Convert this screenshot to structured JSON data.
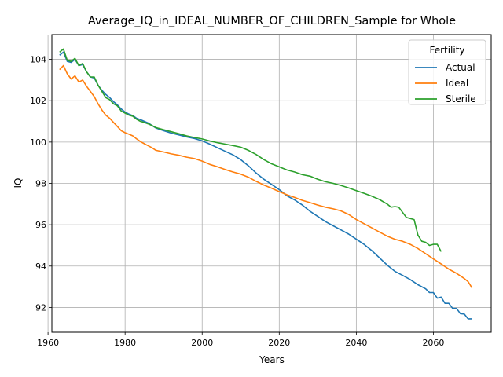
{
  "chart_data": {
    "type": "line",
    "title": "Average_IQ_in_IDEAL_NUMBER_OF_CHILDREN_Sample for Whole",
    "xlabel": "Years",
    "ylabel": "IQ",
    "xlim": [
      1961,
      2075
    ],
    "ylim": [
      90.8,
      105.2
    ],
    "xticks": [
      1960,
      1980,
      2000,
      2020,
      2040,
      2060
    ],
    "yticks": [
      92,
      94,
      96,
      98,
      100,
      102,
      104
    ],
    "xtick_labels": [
      "1960",
      "1980",
      "2000",
      "2020",
      "2040",
      "2060"
    ],
    "ytick_labels": [
      "92",
      "94",
      "96",
      "98",
      "100",
      "102",
      "104"
    ],
    "grid": true,
    "legend": {
      "title": "Fertility",
      "position": "top-right"
    },
    "series": [
      {
        "name": "Actual",
        "color": "#1f77b4",
        "points": [
          [
            1963,
            104.2
          ],
          [
            1964,
            104.35
          ],
          [
            1965,
            103.9
          ],
          [
            1966,
            103.85
          ],
          [
            1967,
            104.0
          ],
          [
            1968,
            103.7
          ],
          [
            1969,
            103.75
          ],
          [
            1970,
            103.4
          ],
          [
            1971,
            103.15
          ],
          [
            1972,
            103.1
          ],
          [
            1973,
            102.75
          ],
          [
            1974,
            102.5
          ],
          [
            1975,
            102.3
          ],
          [
            1976,
            102.15
          ],
          [
            1977,
            101.95
          ],
          [
            1978,
            101.8
          ],
          [
            1979,
            101.6
          ],
          [
            1980,
            101.45
          ],
          [
            1981,
            101.35
          ],
          [
            1982,
            101.28
          ],
          [
            1983,
            101.15
          ],
          [
            1984,
            101.08
          ],
          [
            1985,
            101.0
          ],
          [
            1986,
            100.92
          ],
          [
            1987,
            100.8
          ],
          [
            1988,
            100.68
          ],
          [
            1990,
            100.55
          ],
          [
            1992,
            100.43
          ],
          [
            1994,
            100.34
          ],
          [
            1996,
            100.25
          ],
          [
            1998,
            100.17
          ],
          [
            2000,
            100.06
          ],
          [
            2002,
            99.9
          ],
          [
            2004,
            99.72
          ],
          [
            2006,
            99.55
          ],
          [
            2008,
            99.38
          ],
          [
            2010,
            99.15
          ],
          [
            2012,
            98.85
          ],
          [
            2014,
            98.5
          ],
          [
            2016,
            98.2
          ],
          [
            2018,
            97.95
          ],
          [
            2020,
            97.7
          ],
          [
            2022,
            97.4
          ],
          [
            2024,
            97.2
          ],
          [
            2026,
            96.95
          ],
          [
            2028,
            96.65
          ],
          [
            2030,
            96.4
          ],
          [
            2032,
            96.15
          ],
          [
            2034,
            95.95
          ],
          [
            2036,
            95.75
          ],
          [
            2038,
            95.55
          ],
          [
            2040,
            95.3
          ],
          [
            2042,
            95.05
          ],
          [
            2044,
            94.75
          ],
          [
            2046,
            94.4
          ],
          [
            2048,
            94.05
          ],
          [
            2050,
            93.75
          ],
          [
            2052,
            93.55
          ],
          [
            2054,
            93.35
          ],
          [
            2056,
            93.1
          ],
          [
            2058,
            92.9
          ],
          [
            2059,
            92.72
          ],
          [
            2060,
            92.72
          ],
          [
            2061,
            92.45
          ],
          [
            2062,
            92.5
          ],
          [
            2063,
            92.2
          ],
          [
            2064,
            92.2
          ],
          [
            2065,
            91.95
          ],
          [
            2066,
            91.95
          ],
          [
            2067,
            91.7
          ],
          [
            2068,
            91.68
          ],
          [
            2069,
            91.45
          ],
          [
            2070,
            91.45
          ]
        ]
      },
      {
        "name": "Ideal",
        "color": "#ff7f0e",
        "points": [
          [
            1963,
            103.5
          ],
          [
            1964,
            103.7
          ],
          [
            1965,
            103.3
          ],
          [
            1966,
            103.05
          ],
          [
            1967,
            103.2
          ],
          [
            1968,
            102.9
          ],
          [
            1969,
            103.0
          ],
          [
            1970,
            102.7
          ],
          [
            1971,
            102.45
          ],
          [
            1972,
            102.2
          ],
          [
            1973,
            101.85
          ],
          [
            1974,
            101.55
          ],
          [
            1975,
            101.3
          ],
          [
            1976,
            101.15
          ],
          [
            1977,
            100.95
          ],
          [
            1978,
            100.75
          ],
          [
            1979,
            100.55
          ],
          [
            1980,
            100.45
          ],
          [
            1981,
            100.38
          ],
          [
            1982,
            100.3
          ],
          [
            1983,
            100.15
          ],
          [
            1984,
            100.02
          ],
          [
            1985,
            99.92
          ],
          [
            1986,
            99.82
          ],
          [
            1987,
            99.72
          ],
          [
            1988,
            99.6
          ],
          [
            1990,
            99.52
          ],
          [
            1992,
            99.43
          ],
          [
            1994,
            99.36
          ],
          [
            1996,
            99.27
          ],
          [
            1998,
            99.2
          ],
          [
            2000,
            99.08
          ],
          [
            2002,
            98.92
          ],
          [
            2004,
            98.8
          ],
          [
            2006,
            98.67
          ],
          [
            2008,
            98.55
          ],
          [
            2010,
            98.45
          ],
          [
            2012,
            98.3
          ],
          [
            2014,
            98.1
          ],
          [
            2016,
            97.92
          ],
          [
            2018,
            97.77
          ],
          [
            2020,
            97.6
          ],
          [
            2022,
            97.45
          ],
          [
            2024,
            97.32
          ],
          [
            2026,
            97.18
          ],
          [
            2028,
            97.07
          ],
          [
            2030,
            96.95
          ],
          [
            2032,
            96.85
          ],
          [
            2034,
            96.77
          ],
          [
            2036,
            96.67
          ],
          [
            2038,
            96.5
          ],
          [
            2040,
            96.25
          ],
          [
            2042,
            96.05
          ],
          [
            2044,
            95.85
          ],
          [
            2046,
            95.65
          ],
          [
            2048,
            95.45
          ],
          [
            2050,
            95.3
          ],
          [
            2052,
            95.2
          ],
          [
            2054,
            95.05
          ],
          [
            2056,
            94.85
          ],
          [
            2058,
            94.6
          ],
          [
            2060,
            94.35
          ],
          [
            2062,
            94.1
          ],
          [
            2064,
            93.85
          ],
          [
            2066,
            93.65
          ],
          [
            2068,
            93.4
          ],
          [
            2069,
            93.25
          ],
          [
            2070,
            92.95
          ]
        ]
      },
      {
        "name": "Sterile",
        "color": "#2ca02c",
        "points": [
          [
            1963,
            104.35
          ],
          [
            1964,
            104.5
          ],
          [
            1965,
            103.95
          ],
          [
            1966,
            103.9
          ],
          [
            1967,
            104.05
          ],
          [
            1968,
            103.7
          ],
          [
            1969,
            103.8
          ],
          [
            1970,
            103.4
          ],
          [
            1971,
            103.15
          ],
          [
            1972,
            103.15
          ],
          [
            1973,
            102.75
          ],
          [
            1974,
            102.45
          ],
          [
            1975,
            102.15
          ],
          [
            1976,
            102.05
          ],
          [
            1977,
            101.85
          ],
          [
            1978,
            101.75
          ],
          [
            1979,
            101.5
          ],
          [
            1980,
            101.4
          ],
          [
            1981,
            101.3
          ],
          [
            1982,
            101.25
          ],
          [
            1983,
            101.1
          ],
          [
            1984,
            101.0
          ],
          [
            1985,
            100.95
          ],
          [
            1986,
            100.88
          ],
          [
            1987,
            100.8
          ],
          [
            1988,
            100.7
          ],
          [
            1990,
            100.6
          ],
          [
            1992,
            100.5
          ],
          [
            1994,
            100.4
          ],
          [
            1996,
            100.3
          ],
          [
            1998,
            100.22
          ],
          [
            2000,
            100.15
          ],
          [
            2002,
            100.05
          ],
          [
            2004,
            99.97
          ],
          [
            2006,
            99.9
          ],
          [
            2008,
            99.83
          ],
          [
            2010,
            99.75
          ],
          [
            2012,
            99.6
          ],
          [
            2014,
            99.4
          ],
          [
            2016,
            99.15
          ],
          [
            2018,
            98.95
          ],
          [
            2020,
            98.8
          ],
          [
            2022,
            98.65
          ],
          [
            2024,
            98.55
          ],
          [
            2026,
            98.42
          ],
          [
            2028,
            98.35
          ],
          [
            2030,
            98.2
          ],
          [
            2032,
            98.08
          ],
          [
            2034,
            98.0
          ],
          [
            2036,
            97.9
          ],
          [
            2038,
            97.78
          ],
          [
            2040,
            97.65
          ],
          [
            2042,
            97.52
          ],
          [
            2044,
            97.38
          ],
          [
            2046,
            97.22
          ],
          [
            2048,
            97.0
          ],
          [
            2049,
            96.85
          ],
          [
            2050,
            96.88
          ],
          [
            2051,
            96.85
          ],
          [
            2052,
            96.6
          ],
          [
            2053,
            96.35
          ],
          [
            2054,
            96.3
          ],
          [
            2055,
            96.25
          ],
          [
            2056,
            95.5
          ],
          [
            2057,
            95.2
          ],
          [
            2058,
            95.15
          ],
          [
            2059,
            95.0
          ],
          [
            2060,
            95.05
          ],
          [
            2061,
            95.05
          ],
          [
            2062,
            94.7
          ]
        ]
      }
    ]
  }
}
